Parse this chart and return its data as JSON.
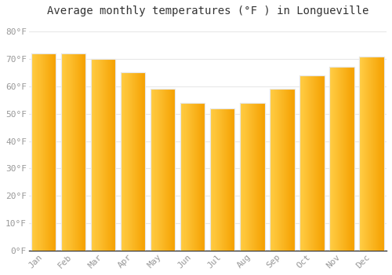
{
  "title": "Average monthly temperatures (°F ) in Longueville",
  "months": [
    "Jan",
    "Feb",
    "Mar",
    "Apr",
    "May",
    "Jun",
    "Jul",
    "Aug",
    "Sep",
    "Oct",
    "Nov",
    "Dec"
  ],
  "values": [
    72,
    72,
    70,
    65,
    59,
    54,
    52,
    54,
    59,
    64,
    67,
    71
  ],
  "bar_color_left": "#FFCC44",
  "bar_color_right": "#F5A000",
  "bar_edge_color": "#E8E8E8",
  "ylim": [
    0,
    84
  ],
  "yticks": [
    0,
    10,
    20,
    30,
    40,
    50,
    60,
    70,
    80
  ],
  "ytick_labels": [
    "0°F",
    "10°F",
    "20°F",
    "30°F",
    "40°F",
    "50°F",
    "60°F",
    "70°F",
    "80°F"
  ],
  "background_color": "#ffffff",
  "grid_color": "#e8e8e8",
  "title_fontsize": 10,
  "tick_fontsize": 8,
  "bar_width": 0.82
}
